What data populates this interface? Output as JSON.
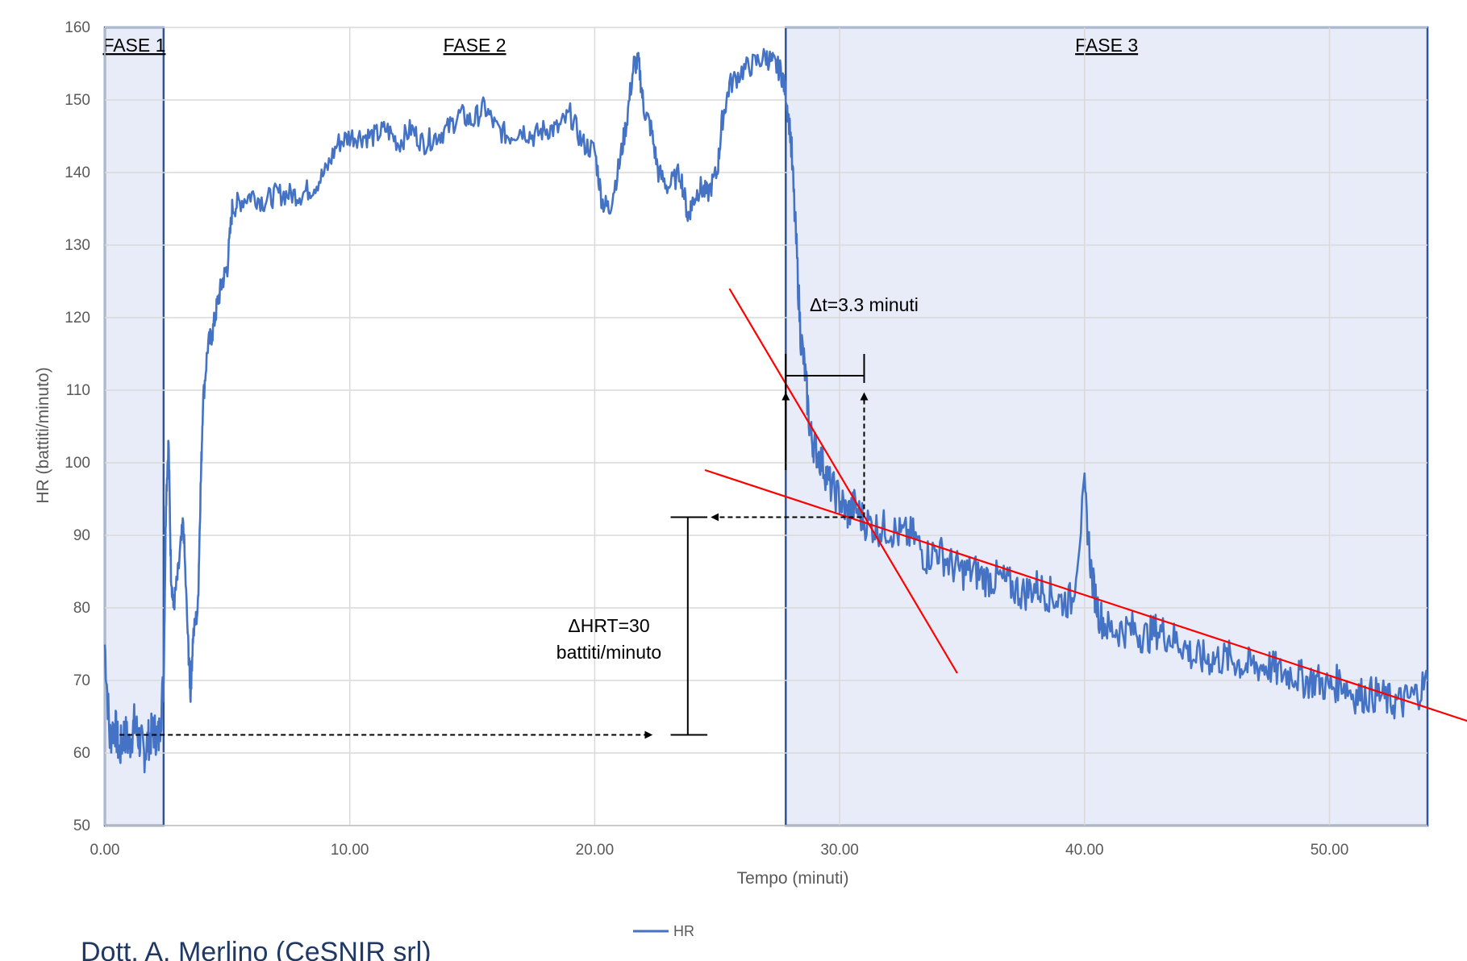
{
  "chart_data": {
    "type": "line",
    "xlabel": "Tempo (minuti)",
    "ylabel": "HR (battiti/minuto)",
    "xlim": [
      0,
      54
    ],
    "ylim": [
      50,
      160
    ],
    "x_ticks": [
      "0.00",
      "10.00",
      "20.00",
      "30.00",
      "40.00",
      "50.00"
    ],
    "y_ticks": [
      "50",
      "60",
      "70",
      "80",
      "90",
      "100",
      "110",
      "120",
      "130",
      "140",
      "150",
      "160"
    ],
    "grid": true,
    "legend_position": "bottom",
    "series": [
      {
        "name": "HR",
        "color": "#4472c4",
        "points": [
          [
            0.0,
            75
          ],
          [
            0.2,
            62
          ],
          [
            0.4,
            64
          ],
          [
            0.6,
            60
          ],
          [
            0.8,
            63
          ],
          [
            1.0,
            61
          ],
          [
            1.2,
            64
          ],
          [
            1.4,
            62
          ],
          [
            1.6,
            60
          ],
          [
            1.8,
            62
          ],
          [
            2.0,
            63
          ],
          [
            2.2,
            62
          ],
          [
            2.4,
            70
          ],
          [
            2.5,
            95
          ],
          [
            2.6,
            103
          ],
          [
            2.7,
            85
          ],
          [
            2.8,
            80
          ],
          [
            3.0,
            85
          ],
          [
            3.2,
            92
          ],
          [
            3.4,
            75
          ],
          [
            3.5,
            68
          ],
          [
            3.6,
            76
          ],
          [
            3.8,
            80
          ],
          [
            3.9,
            95
          ],
          [
            4.0,
            108
          ],
          [
            4.2,
            116
          ],
          [
            4.4,
            118
          ],
          [
            4.6,
            122
          ],
          [
            4.8,
            125
          ],
          [
            5.0,
            127
          ],
          [
            5.2,
            135
          ],
          [
            5.5,
            136
          ],
          [
            6.0,
            137
          ],
          [
            6.5,
            136
          ],
          [
            7.0,
            137
          ],
          [
            7.5,
            137
          ],
          [
            8.0,
            137
          ],
          [
            8.5,
            138
          ],
          [
            9.0,
            140
          ],
          [
            9.5,
            144
          ],
          [
            10.0,
            145
          ],
          [
            10.5,
            145
          ],
          [
            11.0,
            145
          ],
          [
            11.5,
            146
          ],
          [
            12.0,
            144
          ],
          [
            12.5,
            146
          ],
          [
            13.0,
            144
          ],
          [
            13.5,
            145
          ],
          [
            14.0,
            146
          ],
          [
            14.5,
            148
          ],
          [
            15.0,
            147
          ],
          [
            15.5,
            149
          ],
          [
            16.0,
            146
          ],
          [
            16.5,
            145
          ],
          [
            17.0,
            146
          ],
          [
            17.5,
            145
          ],
          [
            18.0,
            146
          ],
          [
            18.5,
            146
          ],
          [
            19.0,
            148
          ],
          [
            19.5,
            144
          ],
          [
            20.0,
            143
          ],
          [
            20.3,
            136
          ],
          [
            20.6,
            135
          ],
          [
            21.0,
            141
          ],
          [
            21.3,
            147
          ],
          [
            21.6,
            155
          ],
          [
            21.8,
            155
          ],
          [
            22.0,
            149
          ],
          [
            22.3,
            146
          ],
          [
            22.6,
            140
          ],
          [
            23.0,
            138
          ],
          [
            23.5,
            140
          ],
          [
            23.8,
            134
          ],
          [
            24.0,
            136
          ],
          [
            24.3,
            138
          ],
          [
            24.6,
            137
          ],
          [
            25.0,
            140
          ],
          [
            25.2,
            147
          ],
          [
            25.5,
            152
          ],
          [
            26.0,
            154
          ],
          [
            26.5,
            155
          ],
          [
            27.0,
            156
          ],
          [
            27.3,
            155
          ],
          [
            27.6,
            154
          ],
          [
            27.8,
            151
          ],
          [
            28.0,
            145
          ],
          [
            28.2,
            132
          ],
          [
            28.4,
            118
          ],
          [
            28.6,
            112
          ],
          [
            28.8,
            104
          ],
          [
            29.0,
            102
          ],
          [
            29.3,
            100
          ],
          [
            29.6,
            97
          ],
          [
            30.0,
            95
          ],
          [
            30.3,
            93
          ],
          [
            30.6,
            94
          ],
          [
            31.0,
            92
          ],
          [
            31.5,
            91
          ],
          [
            32.0,
            91
          ],
          [
            32.5,
            90
          ],
          [
            33.0,
            90
          ],
          [
            33.5,
            87
          ],
          [
            34.0,
            88
          ],
          [
            34.5,
            86
          ],
          [
            35.0,
            85
          ],
          [
            35.5,
            85
          ],
          [
            36.0,
            84
          ],
          [
            36.5,
            84
          ],
          [
            37.0,
            83
          ],
          [
            37.5,
            82
          ],
          [
            38.0,
            83
          ],
          [
            38.5,
            82
          ],
          [
            39.0,
            81
          ],
          [
            39.5,
            81
          ],
          [
            40.0,
            96
          ],
          [
            40.3,
            84
          ],
          [
            40.6,
            79
          ],
          [
            41.0,
            77
          ],
          [
            41.5,
            77
          ],
          [
            42.0,
            77
          ],
          [
            42.5,
            76
          ],
          [
            43.0,
            77
          ],
          [
            43.5,
            76
          ],
          [
            44.0,
            75
          ],
          [
            44.5,
            73
          ],
          [
            45.0,
            73
          ],
          [
            45.5,
            73
          ],
          [
            46.0,
            73
          ],
          [
            46.5,
            72
          ],
          [
            47.0,
            72
          ],
          [
            47.5,
            72
          ],
          [
            48.0,
            71
          ],
          [
            48.5,
            71
          ],
          [
            49.0,
            70
          ],
          [
            49.5,
            70
          ],
          [
            50.0,
            69
          ],
          [
            50.5,
            70
          ],
          [
            51.0,
            68
          ],
          [
            51.5,
            68
          ],
          [
            52.0,
            68
          ],
          [
            52.5,
            67
          ],
          [
            53.0,
            67
          ],
          [
            53.5,
            68
          ],
          [
            54.0,
            70
          ]
        ]
      }
    ],
    "phases": [
      {
        "label": "FASE 1",
        "x_start": 0,
        "x_end": 2.4
      },
      {
        "label": "FASE 2",
        "x_start": 2.4,
        "x_end": 27.8
      },
      {
        "label": "FASE 3",
        "x_start": 27.8,
        "x_end": 54
      }
    ],
    "annotations": {
      "delta_t": "Δt=3.3 minuti",
      "delta_hr_line1": "ΔHRT=30",
      "delta_hr_line2": "battiti/minuto"
    },
    "trend_lines": [
      {
        "x1": 25.5,
        "y1": 124,
        "x2": 34.8,
        "y2": 71,
        "color": "#ff0000"
      },
      {
        "x1": 24.5,
        "y1": 99,
        "x2": 56,
        "y2": 64,
        "color": "#ff0000"
      }
    ]
  },
  "legend": {
    "label": "HR"
  },
  "footer": {
    "author": "Dott. A. Merlino (CeSNIR srl)"
  }
}
